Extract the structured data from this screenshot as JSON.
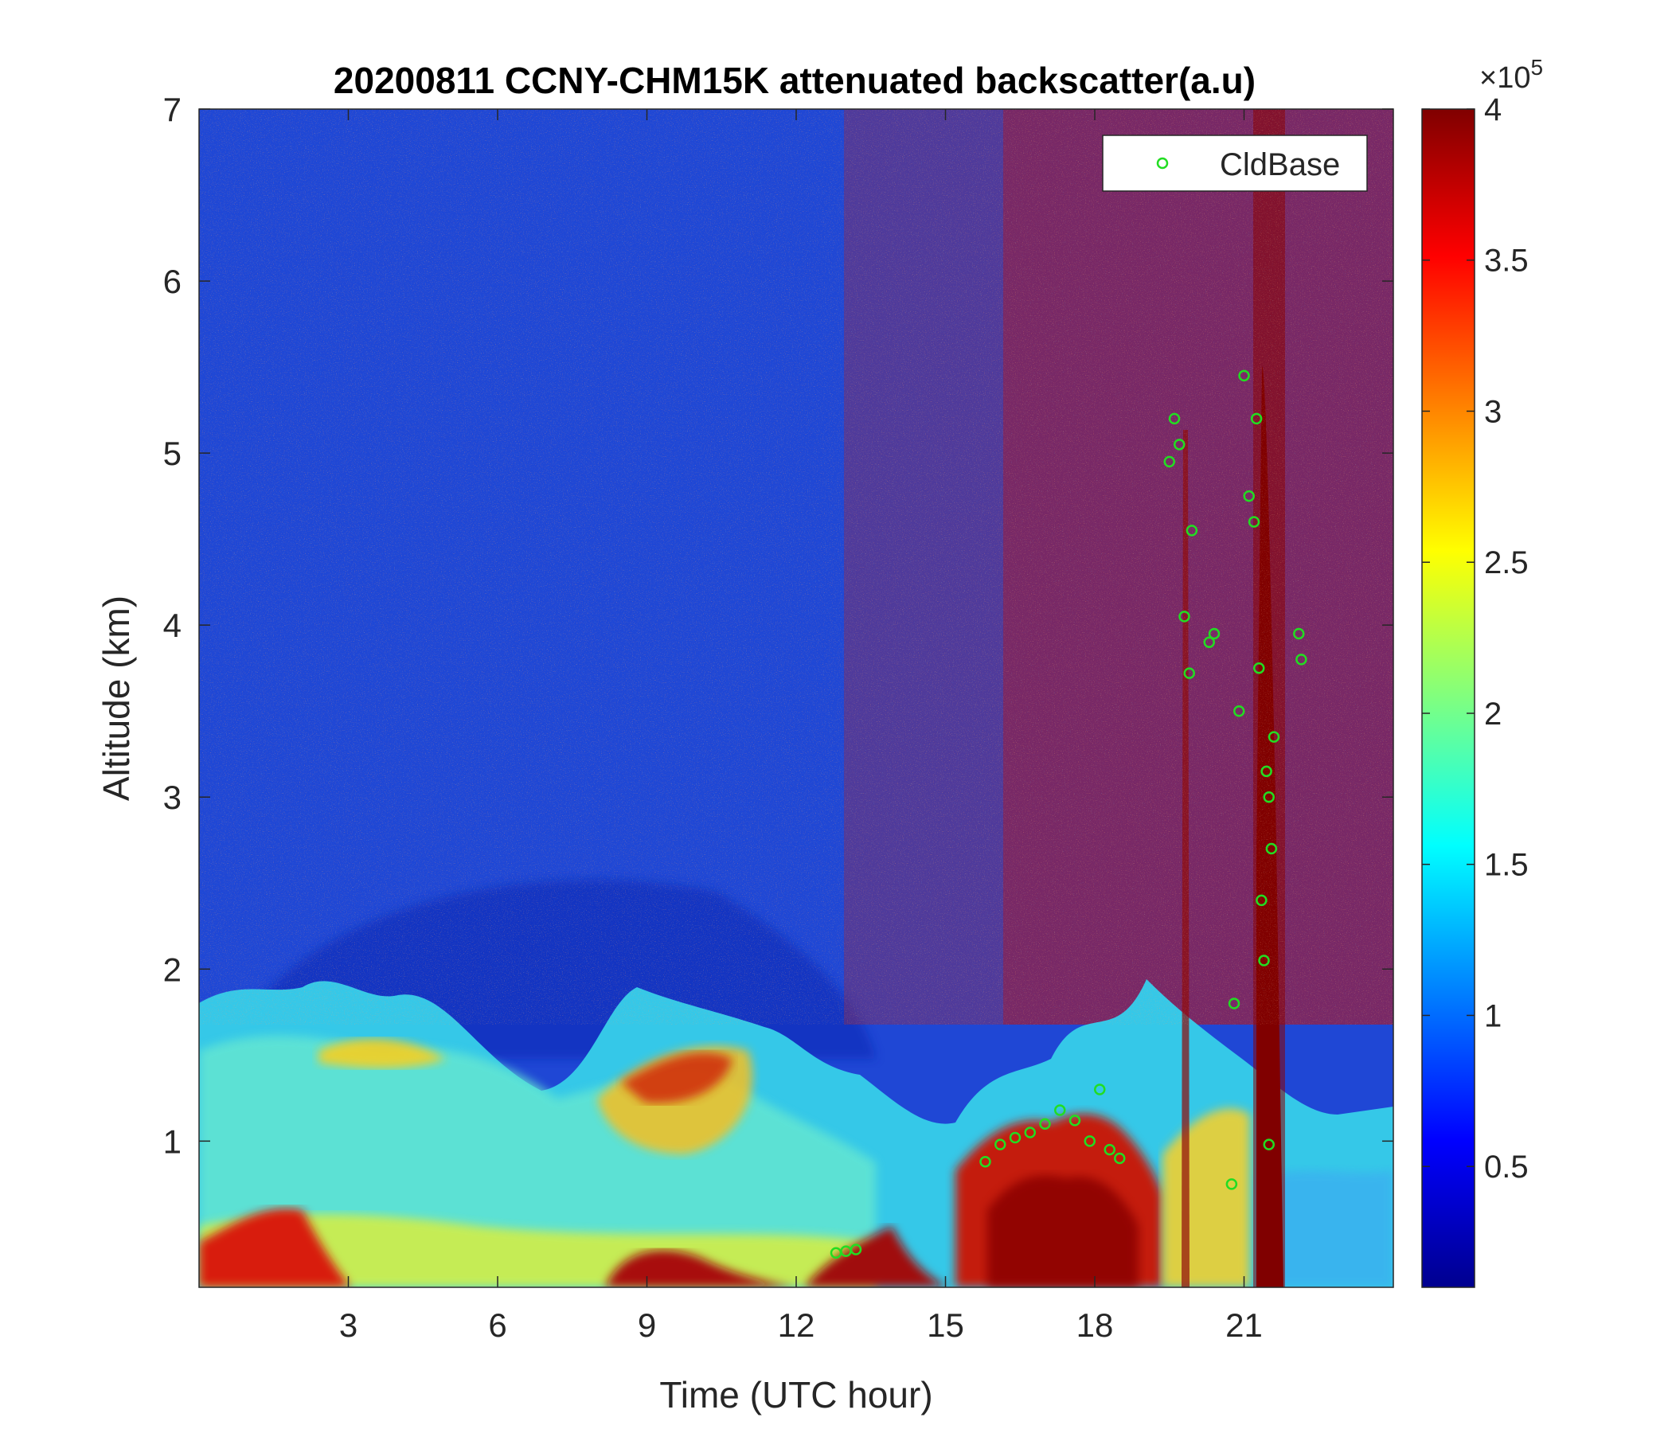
{
  "chart_data": {
    "type": "heatmap",
    "title": "20200811 CCNY-CHM15K attenuated backscatter(a.u)",
    "xlabel": "Time (UTC hour)",
    "ylabel": "Altitude (km)",
    "xlim": [
      0,
      24
    ],
    "ylim": [
      0.15,
      7
    ],
    "xticks": [
      3,
      6,
      9,
      12,
      15,
      18,
      21
    ],
    "xtick_labels": [
      "3",
      "6",
      "9",
      "12",
      "15",
      "18",
      "21"
    ],
    "yticks": [
      1,
      2,
      3,
      4,
      5,
      6,
      7
    ],
    "ytick_labels": [
      "1",
      "2",
      "3",
      "4",
      "5",
      "6",
      "7"
    ],
    "colorbar": {
      "colormap": "jet",
      "clim": [
        0.1,
        4
      ],
      "ticks": [
        0.5,
        1,
        1.5,
        2,
        2.5,
        3,
        3.5,
        4
      ],
      "tick_labels": [
        "0.5",
        "1",
        "1.5",
        "2",
        "2.5",
        "3",
        "3.5",
        "4"
      ],
      "exponent_label": "×10",
      "exponent_power": "5"
    },
    "legend": {
      "position": "top-right",
      "entries": [
        "CldBase"
      ]
    },
    "series": [
      {
        "name": "CldBase",
        "marker": "circle",
        "color": "#22dd22",
        "x": [
          12.8,
          13.0,
          13.2,
          15.8,
          16.1,
          16.4,
          16.7,
          17.0,
          17.3,
          17.6,
          17.9,
          18.1,
          18.3,
          18.5,
          19.5,
          19.6,
          19.7,
          19.8,
          19.9,
          19.95,
          20.3,
          20.4,
          20.9,
          21.0,
          21.1,
          21.2,
          21.25,
          21.3,
          21.35,
          21.4,
          21.45,
          21.5,
          21.55,
          21.6,
          22.1,
          22.15,
          20.8,
          20.75,
          21.5
        ],
        "y": [
          0.35,
          0.36,
          0.37,
          0.88,
          0.98,
          1.02,
          1.05,
          1.1,
          1.18,
          1.12,
          1.0,
          1.3,
          0.95,
          0.9,
          4.95,
          5.2,
          5.05,
          4.05,
          3.72,
          4.55,
          3.9,
          3.95,
          3.5,
          5.45,
          4.75,
          4.6,
          5.2,
          3.75,
          2.4,
          2.05,
          3.15,
          3.0,
          2.7,
          3.35,
          3.95,
          3.8,
          1.8,
          0.75,
          0.98
        ]
      }
    ]
  }
}
